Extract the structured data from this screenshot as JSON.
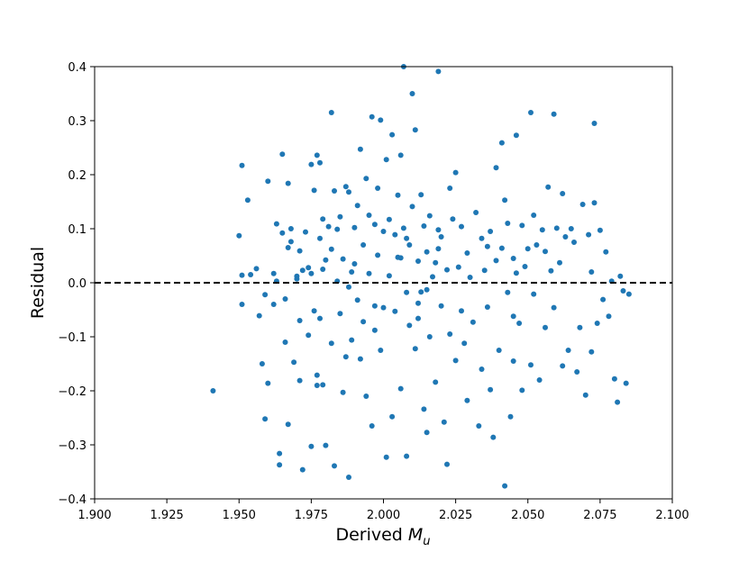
{
  "chart_data": {
    "type": "scatter",
    "xlabel": "Derived ",
    "xlabel_var": "M",
    "xlabel_sub": "u",
    "ylabel": "Residual",
    "xlim": [
      1.9,
      2.1
    ],
    "ylim": [
      -0.4,
      0.4
    ],
    "xticks": [
      "1.900",
      "1.925",
      "1.950",
      "1.975",
      "2.000",
      "2.025",
      "2.050",
      "2.075",
      "2.100"
    ],
    "xtick_values": [
      1.9,
      1.925,
      1.95,
      1.975,
      2.0,
      2.025,
      2.05,
      2.075,
      2.1
    ],
    "yticks": [
      "0.4",
      "0.3",
      "0.2",
      "0.1",
      "0.0",
      "−0.1",
      "−0.2",
      "−0.3",
      "−0.4"
    ],
    "ytick_values": [
      0.4,
      0.3,
      0.2,
      0.1,
      0.0,
      -0.1,
      -0.2,
      -0.3,
      -0.4
    ],
    "reference_line": {
      "y": 0.0,
      "style": "dashed",
      "color": "#000000"
    },
    "grid": false,
    "marker_color": "#1f77b4",
    "series": [
      {
        "points": [
          [
            1.941,
            -0.2
          ],
          [
            1.95,
            0.087
          ],
          [
            1.951,
            0.217
          ],
          [
            1.951,
            -0.04
          ],
          [
            1.951,
            0.014
          ],
          [
            1.953,
            0.153
          ],
          [
            1.954,
            0.015
          ],
          [
            1.956,
            0.026
          ],
          [
            1.957,
            -0.061
          ],
          [
            1.958,
            -0.15
          ],
          [
            1.959,
            -0.252
          ],
          [
            1.959,
            -0.022
          ],
          [
            1.96,
            0.188
          ],
          [
            1.96,
            -0.186
          ],
          [
            1.962,
            0.017
          ],
          [
            1.962,
            -0.04
          ],
          [
            1.963,
            0.109
          ],
          [
            1.963,
            0.003
          ],
          [
            1.964,
            -0.316
          ],
          [
            1.964,
            -0.337
          ],
          [
            1.965,
            0.238
          ],
          [
            1.965,
            0.092
          ],
          [
            1.966,
            -0.11
          ],
          [
            1.966,
            -0.03
          ],
          [
            1.967,
            0.184
          ],
          [
            1.967,
            0.065
          ],
          [
            1.967,
            -0.262
          ],
          [
            1.968,
            0.1
          ],
          [
            1.968,
            0.076
          ],
          [
            1.969,
            -0.147
          ],
          [
            1.97,
            0.012
          ],
          [
            1.97,
            0.007
          ],
          [
            1.971,
            0.059
          ],
          [
            1.971,
            -0.07
          ],
          [
            1.971,
            -0.181
          ],
          [
            1.972,
            -0.346
          ],
          [
            1.972,
            0.023
          ],
          [
            1.973,
            0.094
          ],
          [
            1.974,
            0.028
          ],
          [
            1.974,
            -0.097
          ],
          [
            1.975,
            0.219
          ],
          [
            1.975,
            0.017
          ],
          [
            1.975,
            -0.303
          ],
          [
            1.976,
            0.171
          ],
          [
            1.976,
            -0.052
          ],
          [
            1.977,
            -0.171
          ],
          [
            1.977,
            0.236
          ],
          [
            1.977,
            -0.19
          ],
          [
            1.978,
            0.222
          ],
          [
            1.978,
            0.082
          ],
          [
            1.978,
            -0.066
          ],
          [
            1.979,
            0.118
          ],
          [
            1.979,
            0.025
          ],
          [
            1.979,
            -0.189
          ],
          [
            1.98,
            0.042
          ],
          [
            1.98,
            -0.301
          ],
          [
            1.981,
            0.104
          ],
          [
            1.982,
            0.315
          ],
          [
            1.982,
            0.062
          ],
          [
            1.982,
            -0.112
          ],
          [
            1.983,
            0.17
          ],
          [
            1.983,
            -0.339
          ],
          [
            1.984,
            0.099
          ],
          [
            1.984,
            0.003
          ],
          [
            1.985,
            0.122
          ],
          [
            1.985,
            -0.057
          ],
          [
            1.986,
            -0.203
          ],
          [
            1.986,
            0.044
          ],
          [
            1.987,
            0.178
          ],
          [
            1.987,
            -0.137
          ],
          [
            1.988,
            0.168
          ],
          [
            1.988,
            -0.36
          ],
          [
            1.989,
            0.02
          ],
          [
            1.989,
            -0.106
          ],
          [
            1.99,
            0.102
          ],
          [
            1.99,
            0.035
          ],
          [
            1.991,
            -0.032
          ],
          [
            1.991,
            0.143
          ],
          [
            1.992,
            0.247
          ],
          [
            1.992,
            -0.141
          ],
          [
            1.993,
            0.07
          ],
          [
            1.993,
            -0.072
          ],
          [
            1.994,
            0.193
          ],
          [
            1.994,
            -0.21
          ],
          [
            1.995,
            0.125
          ],
          [
            1.995,
            0.017
          ],
          [
            1.996,
            0.307
          ],
          [
            1.996,
            -0.265
          ],
          [
            1.997,
            0.108
          ],
          [
            1.997,
            -0.088
          ],
          [
            1.998,
            0.175
          ],
          [
            1.998,
            0.051
          ],
          [
            1.999,
            0.301
          ],
          [
            1.999,
            -0.125
          ],
          [
            2.0,
            0.095
          ],
          [
            2.0,
            -0.046
          ],
          [
            2.001,
            0.228
          ],
          [
            2.001,
            -0.323
          ],
          [
            2.002,
            0.117
          ],
          [
            2.002,
            0.013
          ],
          [
            2.003,
            0.274
          ],
          [
            2.003,
            -0.248
          ],
          [
            2.004,
            0.089
          ],
          [
            2.004,
            -0.053
          ],
          [
            2.005,
            0.162
          ],
          [
            2.005,
            0.047
          ],
          [
            2.006,
            0.236
          ],
          [
            2.006,
            -0.196
          ],
          [
            2.007,
            0.4
          ],
          [
            2.007,
            0.101
          ],
          [
            2.008,
            -0.018
          ],
          [
            2.008,
            -0.321
          ],
          [
            2.009,
            0.07
          ],
          [
            2.009,
            -0.079
          ],
          [
            2.01,
            0.35
          ],
          [
            2.01,
            0.141
          ],
          [
            2.011,
            0.283
          ],
          [
            2.011,
            -0.122
          ],
          [
            2.012,
            0.04
          ],
          [
            2.012,
            -0.066
          ],
          [
            2.013,
            0.163
          ],
          [
            2.013,
            -0.017
          ],
          [
            2.014,
            0.105
          ],
          [
            2.014,
            -0.234
          ],
          [
            2.015,
            0.057
          ],
          [
            2.015,
            -0.277
          ],
          [
            2.016,
            0.124
          ],
          [
            2.016,
            -0.1
          ],
          [
            2.017,
            0.011
          ],
          [
            2.018,
            -0.184
          ],
          [
            2.019,
            0.391
          ],
          [
            2.019,
            0.098
          ],
          [
            2.02,
            -0.043
          ],
          [
            2.02,
            0.085
          ],
          [
            2.021,
            -0.258
          ],
          [
            2.022,
            -0.336
          ],
          [
            2.022,
            0.024
          ],
          [
            2.023,
            0.175
          ],
          [
            2.023,
            -0.095
          ],
          [
            2.024,
            0.118
          ],
          [
            2.025,
            0.204
          ],
          [
            2.025,
            -0.144
          ],
          [
            2.026,
            0.029
          ],
          [
            2.027,
            0.104
          ],
          [
            2.028,
            -0.112
          ],
          [
            2.029,
            -0.218
          ],
          [
            2.029,
            0.055
          ],
          [
            2.03,
            0.01
          ],
          [
            2.031,
            -0.073
          ],
          [
            2.032,
            0.13
          ],
          [
            2.033,
            -0.265
          ],
          [
            2.034,
            0.082
          ],
          [
            2.034,
            -0.16
          ],
          [
            2.035,
            0.023
          ],
          [
            2.036,
            -0.045
          ],
          [
            2.037,
            0.095
          ],
          [
            2.037,
            -0.198
          ],
          [
            2.038,
            -0.286
          ],
          [
            2.039,
            0.213
          ],
          [
            2.039,
            0.041
          ],
          [
            2.04,
            -0.125
          ],
          [
            2.041,
            0.259
          ],
          [
            2.041,
            0.064
          ],
          [
            2.042,
            -0.376
          ],
          [
            2.042,
            0.153
          ],
          [
            2.043,
            -0.018
          ],
          [
            2.043,
            0.11
          ],
          [
            2.044,
            -0.248
          ],
          [
            2.045,
            0.045
          ],
          [
            2.045,
            -0.145
          ],
          [
            2.046,
            0.273
          ],
          [
            2.046,
            0.018
          ],
          [
            2.047,
            -0.075
          ],
          [
            2.048,
            0.106
          ],
          [
            2.048,
            -0.199
          ],
          [
            2.049,
            0.03
          ],
          [
            2.05,
            0.063
          ],
          [
            2.051,
            0.315
          ],
          [
            2.051,
            -0.152
          ],
          [
            2.052,
            0.125
          ],
          [
            2.052,
            -0.021
          ],
          [
            2.053,
            0.07
          ],
          [
            2.054,
            -0.18
          ],
          [
            2.055,
            0.098
          ],
          [
            2.056,
            -0.083
          ],
          [
            2.057,
            0.177
          ],
          [
            2.058,
            0.022
          ],
          [
            2.059,
            0.312
          ],
          [
            2.059,
            -0.046
          ],
          [
            2.06,
            0.101
          ],
          [
            2.061,
            0.037
          ],
          [
            2.062,
            0.165
          ],
          [
            2.062,
            -0.154
          ],
          [
            2.063,
            0.085
          ],
          [
            2.064,
            -0.125
          ],
          [
            2.065,
            0.1
          ],
          [
            2.066,
            0.075
          ],
          [
            2.067,
            -0.165
          ],
          [
            2.068,
            -0.083
          ],
          [
            2.069,
            0.145
          ],
          [
            2.07,
            -0.208
          ],
          [
            2.071,
            0.089
          ],
          [
            2.072,
            0.02
          ],
          [
            2.072,
            -0.128
          ],
          [
            2.073,
            0.295
          ],
          [
            2.073,
            0.148
          ],
          [
            2.074,
            -0.075
          ],
          [
            2.075,
            0.097
          ],
          [
            2.076,
            -0.031
          ],
          [
            2.077,
            0.057
          ],
          [
            2.078,
            -0.062
          ],
          [
            2.079,
            0.003
          ],
          [
            2.08,
            -0.178
          ],
          [
            2.081,
            -0.221
          ],
          [
            2.082,
            0.012
          ],
          [
            2.083,
            -0.015
          ],
          [
            2.084,
            -0.186
          ],
          [
            2.085,
            -0.021
          ],
          [
            1.988,
            -0.008
          ],
          [
            1.997,
            -0.043
          ],
          [
            2.006,
            0.046
          ],
          [
            2.015,
            -0.013
          ],
          [
            2.019,
            0.063
          ],
          [
            2.027,
            -0.052
          ],
          [
            2.036,
            0.067
          ],
          [
            2.045,
            -0.062
          ],
          [
            2.056,
            0.058
          ],
          [
            2.008,
            0.082
          ],
          [
            2.012,
            -0.038
          ],
          [
            2.018,
            0.037
          ]
        ]
      }
    ]
  }
}
